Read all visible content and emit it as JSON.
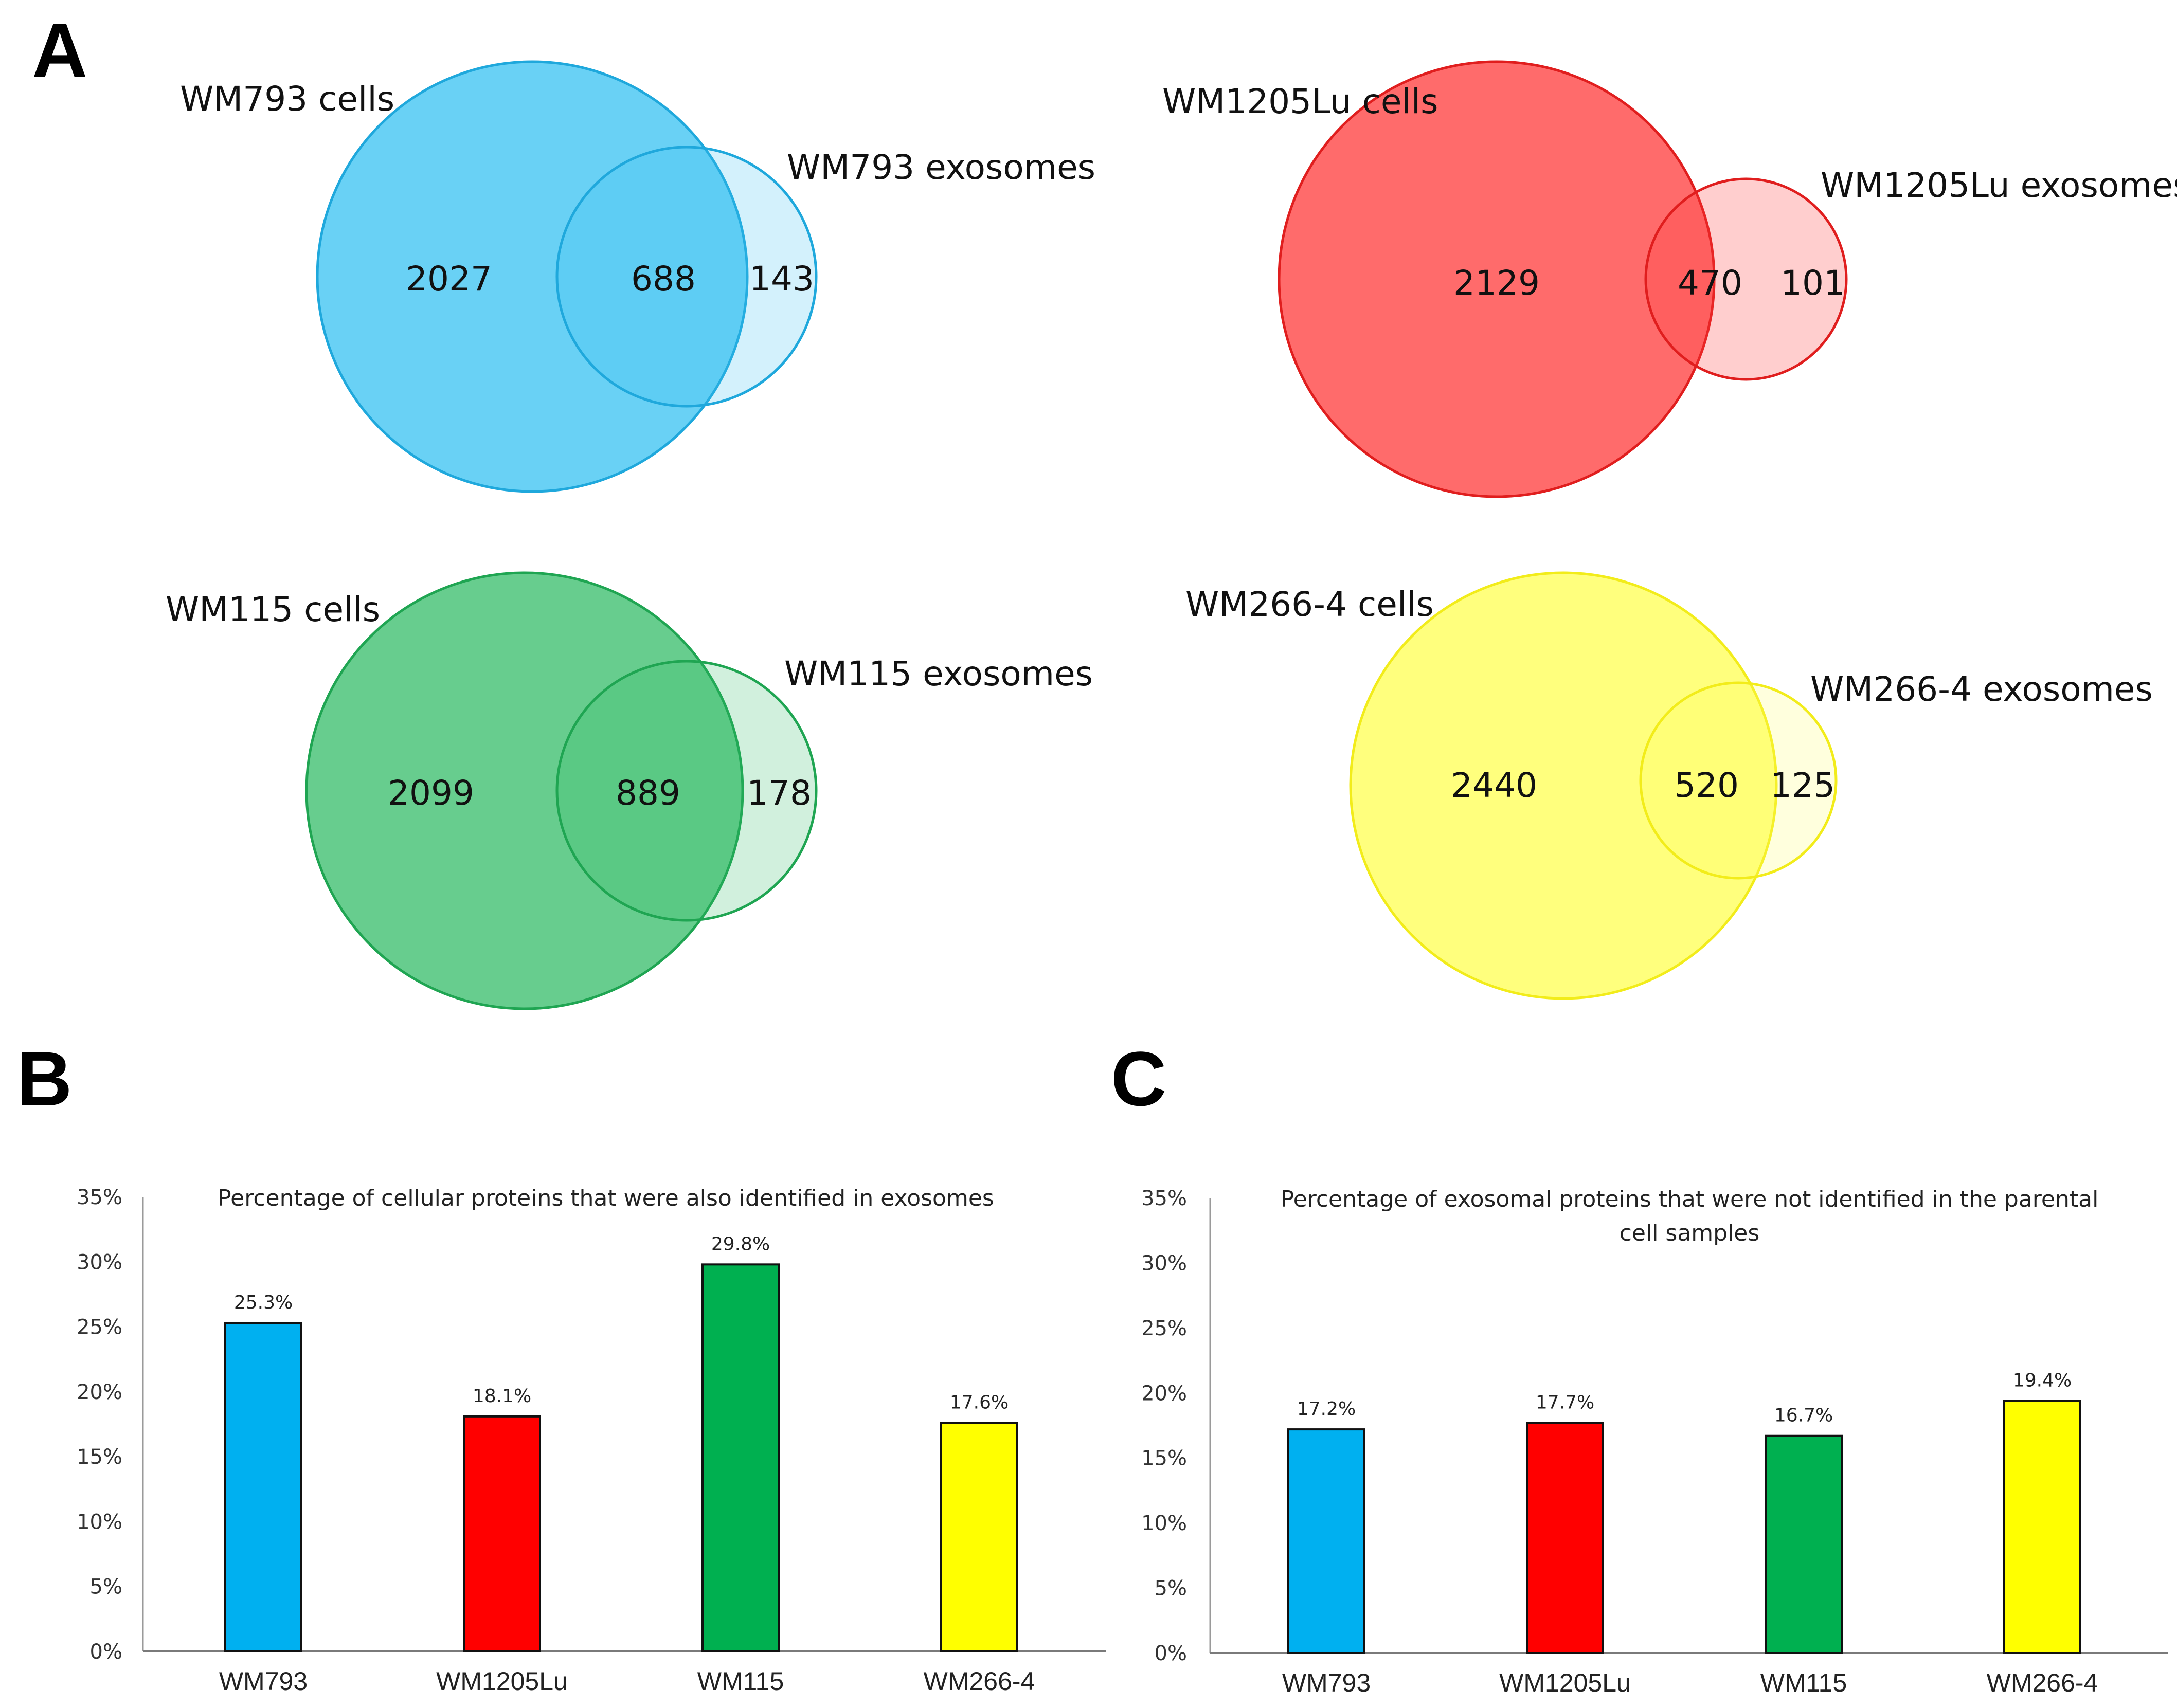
{
  "panels": {
    "A": "A",
    "B": "B",
    "C": "C"
  },
  "venns": [
    {
      "id": "wm793",
      "cells_label": "WM793 cells",
      "exo_label": "WM793 exosomes",
      "cells_only": "2027",
      "overlap": "688",
      "exo_only": "143",
      "fill": "#37C1F1",
      "stroke": "#1FA8DC"
    },
    {
      "id": "wm1205lu",
      "cells_label": "WM1205Lu cells",
      "exo_label": "WM1205Lu exosomes",
      "cells_only": "2129",
      "overlap": "470",
      "exo_only": "101",
      "fill": "#FF3A3A",
      "stroke": "#E01E1E"
    },
    {
      "id": "wm115",
      "cells_label": "WM115 cells",
      "exo_label": "WM115 exosomes",
      "cells_only": "2099",
      "overlap": "889",
      "exo_only": "178",
      "fill": "#2DBA62",
      "stroke": "#1FA552"
    },
    {
      "id": "wm266",
      "cells_label": "WM266-4 cells",
      "exo_label": "WM266-4 exosomes",
      "cells_only": "2440",
      "overlap": "520",
      "exo_only": "125",
      "fill": "#FFFF66",
      "stroke": "#F2EC1A"
    }
  ],
  "chart_data": [
    {
      "type": "bar",
      "title": "Percentage of cellular proteins that were also identified in exosomes",
      "categories": [
        "WM793",
        "WM1205Lu",
        "WM115",
        "WM266-4"
      ],
      "values": [
        25.3,
        18.1,
        29.8,
        17.6
      ],
      "data_labels": [
        "25.3%",
        "18.1%",
        "29.8%",
        "17.6%"
      ],
      "colors": [
        "#00B0F0",
        "#FF0000",
        "#00B050",
        "#FFFF00"
      ],
      "ylim": [
        0,
        35
      ],
      "yticks": [
        "0%",
        "5%",
        "10%",
        "15%",
        "20%",
        "25%",
        "30%",
        "35%"
      ],
      "xlabel": "",
      "ylabel": "",
      "grid": false
    },
    {
      "type": "bar",
      "title": "Percentage of exosomal proteins that were not identified in the parental cell samples",
      "title_lines": [
        "Percentage of exosomal proteins that were not identified in the parental",
        "cell samples"
      ],
      "categories": [
        "WM793",
        "WM1205Lu",
        "WM115",
        "WM266-4"
      ],
      "values": [
        17.2,
        17.7,
        16.7,
        19.4
      ],
      "data_labels": [
        "17.2%",
        "17.7%",
        "16.7%",
        "19.4%"
      ],
      "colors": [
        "#00B0F0",
        "#FF0000",
        "#00B050",
        "#FFFF00"
      ],
      "ylim": [
        0,
        35
      ],
      "yticks": [
        "0%",
        "5%",
        "10%",
        "15%",
        "20%",
        "25%",
        "30%",
        "35%"
      ],
      "xlabel": "",
      "ylabel": "",
      "grid": false
    }
  ]
}
